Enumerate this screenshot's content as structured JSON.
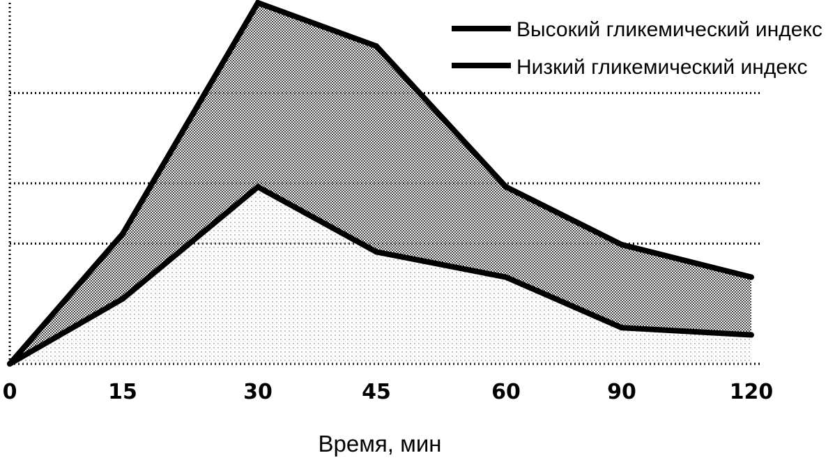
{
  "chart_data": {
    "type": "area",
    "x": [
      0,
      15,
      30,
      45,
      60,
      90,
      120
    ],
    "xlabel": "Время, мин",
    "ylabel": "",
    "ylim": [
      0,
      100
    ],
    "grid": true,
    "legend_position": "top-right",
    "series": [
      {
        "name": "Высокий гликемический индекс",
        "values": [
          0,
          36,
          100,
          88,
          49,
          33,
          24
        ],
        "line_color": "#000000",
        "fill_color": "#9a9a9a"
      },
      {
        "name": "Низкий гликемический индекс",
        "values": [
          0,
          18,
          49,
          31,
          24,
          10,
          8
        ],
        "line_color": "#000000",
        "fill_color": "#d4d4d4"
      }
    ]
  }
}
